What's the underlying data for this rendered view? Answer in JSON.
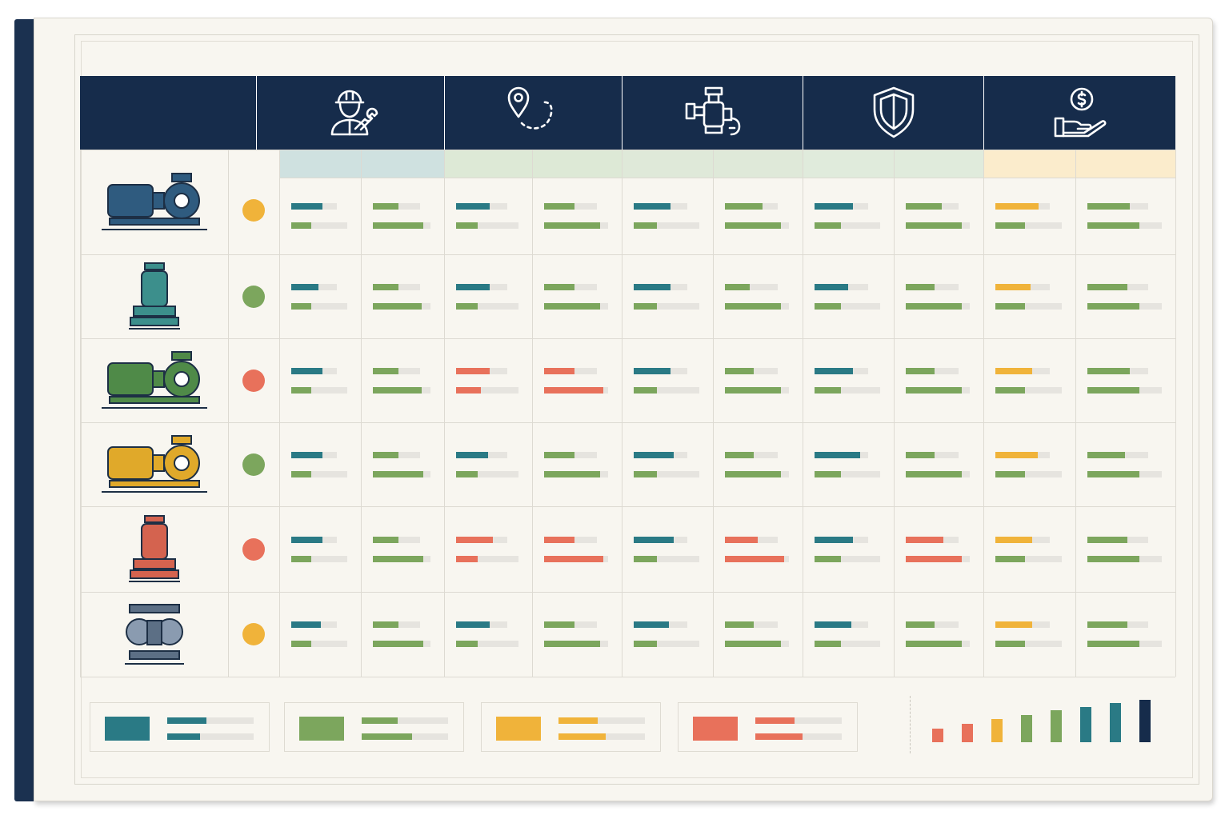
{
  "colors": {
    "navy": "#162c4b",
    "teal": "#2a7a85",
    "green": "#7ca65d",
    "orange": "#f0b33a",
    "red": "#e8715b",
    "track": "#e6e4df"
  },
  "header_icons": [
    {
      "icon": "technician-wrench-icon"
    },
    {
      "icon": "location-route-icon"
    },
    {
      "icon": "pipe-valve-icon"
    },
    {
      "icon": "shield-icon"
    },
    {
      "icon": "hand-dollar-icon"
    }
  ],
  "subheader_colors": [
    "#cfe1e0",
    "#dde9d6",
    "#dfe9d9",
    "#e0ebdc",
    "#fbeccc"
  ],
  "pumps": [
    {
      "name": "horizontal-centrifugal-pump",
      "color": "#2f5b7f",
      "status": "#f0b33a"
    },
    {
      "name": "vertical-inline-pump",
      "color": "#3c8f8c",
      "status": "#7ca65d"
    },
    {
      "name": "multistage-horizontal-pump",
      "color": "#4f8a48",
      "status": "#e8715b"
    },
    {
      "name": "end-suction-pump",
      "color": "#e0a92a",
      "status": "#7ca65d"
    },
    {
      "name": "submersible-pump",
      "color": "#d4634f",
      "status": "#e8715b"
    },
    {
      "name": "diaphragm-pump",
      "color": "#5c6f85",
      "status": "#f0b33a"
    }
  ],
  "rows": [
    [
      [
        0.68,
        0.35,
        "t",
        "g"
      ],
      [
        0.55,
        0.88,
        "g",
        "g"
      ],
      [
        0.65,
        0.35,
        "t",
        "g"
      ],
      [
        0.58,
        0.88,
        "g",
        "g"
      ],
      [
        0.68,
        0.35,
        "t",
        "g"
      ],
      [
        0.72,
        0.88,
        "g",
        "g"
      ],
      [
        0.72,
        0.4,
        "t",
        "g"
      ],
      [
        0.68,
        0.88,
        "g",
        "g"
      ],
      [
        0.8,
        0.45,
        "o",
        "g"
      ],
      [
        0.7,
        0.7,
        "g",
        "g"
      ]
    ],
    [
      [
        0.6,
        0.35,
        "t",
        "g"
      ],
      [
        0.55,
        0.85,
        "g",
        "g"
      ],
      [
        0.65,
        0.35,
        "t",
        "g"
      ],
      [
        0.58,
        0.88,
        "g",
        "g"
      ],
      [
        0.68,
        0.35,
        "t",
        "g"
      ],
      [
        0.48,
        0.88,
        "g",
        "g"
      ],
      [
        0.62,
        0.4,
        "t",
        "g"
      ],
      [
        0.55,
        0.88,
        "g",
        "g"
      ],
      [
        0.65,
        0.45,
        "o",
        "g"
      ],
      [
        0.65,
        0.7,
        "g",
        "g"
      ]
    ],
    [
      [
        0.68,
        0.35,
        "t",
        "g"
      ],
      [
        0.55,
        0.85,
        "g",
        "g"
      ],
      [
        0.65,
        0.4,
        "r",
        "r"
      ],
      [
        0.58,
        0.92,
        "r",
        "r"
      ],
      [
        0.68,
        0.35,
        "t",
        "g"
      ],
      [
        0.55,
        0.88,
        "g",
        "g"
      ],
      [
        0.72,
        0.4,
        "t",
        "g"
      ],
      [
        0.55,
        0.88,
        "g",
        "g"
      ],
      [
        0.68,
        0.45,
        "o",
        "g"
      ],
      [
        0.7,
        0.7,
        "g",
        "g"
      ]
    ],
    [
      [
        0.68,
        0.35,
        "t",
        "g"
      ],
      [
        0.55,
        0.88,
        "g",
        "g"
      ],
      [
        0.62,
        0.35,
        "t",
        "g"
      ],
      [
        0.58,
        0.88,
        "g",
        "g"
      ],
      [
        0.75,
        0.35,
        "t",
        "g"
      ],
      [
        0.55,
        0.88,
        "g",
        "g"
      ],
      [
        0.85,
        0.4,
        "t",
        "g"
      ],
      [
        0.55,
        0.88,
        "g",
        "g"
      ],
      [
        0.78,
        0.45,
        "o",
        "g"
      ],
      [
        0.62,
        0.7,
        "g",
        "g"
      ]
    ],
    [
      [
        0.68,
        0.35,
        "t",
        "g"
      ],
      [
        0.55,
        0.88,
        "g",
        "g"
      ],
      [
        0.72,
        0.35,
        "r",
        "r"
      ],
      [
        0.58,
        0.92,
        "r",
        "r"
      ],
      [
        0.75,
        0.35,
        "t",
        "g"
      ],
      [
        0.62,
        0.92,
        "r",
        "r"
      ],
      [
        0.72,
        0.4,
        "t",
        "g"
      ],
      [
        0.72,
        0.88,
        "r",
        "r"
      ],
      [
        0.68,
        0.45,
        "o",
        "g"
      ],
      [
        0.65,
        0.7,
        "g",
        "g"
      ]
    ],
    [
      [
        0.65,
        0.35,
        "t",
        "g"
      ],
      [
        0.55,
        0.88,
        "g",
        "g"
      ],
      [
        0.65,
        0.35,
        "t",
        "g"
      ],
      [
        0.58,
        0.88,
        "g",
        "g"
      ],
      [
        0.65,
        0.35,
        "t",
        "g"
      ],
      [
        0.55,
        0.88,
        "g",
        "g"
      ],
      [
        0.68,
        0.4,
        "t",
        "g"
      ],
      [
        0.55,
        0.88,
        "g",
        "g"
      ],
      [
        0.68,
        0.45,
        "o",
        "g"
      ],
      [
        0.65,
        0.7,
        "g",
        "g"
      ]
    ]
  ],
  "legend": [
    {
      "swatch": "#2a7a85",
      "fill1": 0.45,
      "fill2": 0.38
    },
    {
      "swatch": "#7ca65d",
      "fill1": 0.42,
      "fill2": 0.58
    },
    {
      "swatch": "#f0b33a",
      "fill1": 0.45,
      "fill2": 0.55
    },
    {
      "swatch": "#e8715b",
      "fill1": 0.45,
      "fill2": 0.55
    }
  ],
  "scale": [
    {
      "level": 0.22,
      "color": "#e8715b"
    },
    {
      "level": 0.3,
      "color": "#e8715b"
    },
    {
      "level": 0.38,
      "color": "#f0b33a"
    },
    {
      "level": 0.45,
      "color": "#7ca65d"
    },
    {
      "level": 0.52,
      "color": "#7ca65d"
    },
    {
      "level": 0.58,
      "color": "#2a7a85"
    },
    {
      "level": 0.65,
      "color": "#2a7a85"
    },
    {
      "level": 0.7,
      "color": "#162c4b"
    }
  ]
}
